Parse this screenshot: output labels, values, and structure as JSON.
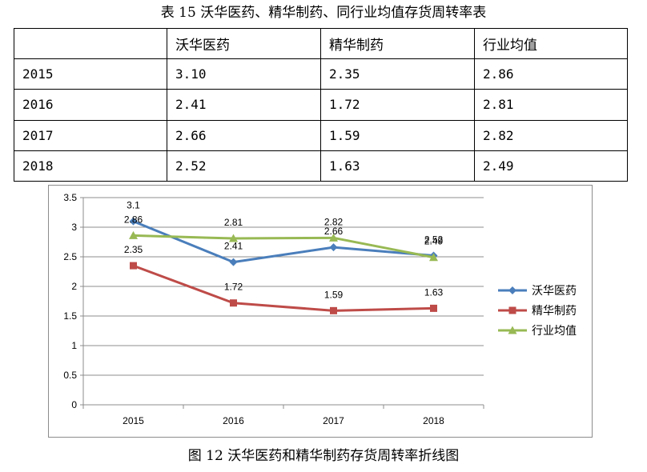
{
  "table_title": "表 15 沃华医药、精华制药、同行业均值存货周转率表",
  "table": {
    "headers": [
      "",
      "沃华医药",
      "精华制药",
      "行业均值"
    ],
    "rows": [
      [
        "2015",
        "3.10",
        "2.35",
        "2.86"
      ],
      [
        "2016",
        "2.41",
        "1.72",
        "2.81"
      ],
      [
        "2017",
        "2.66",
        "1.59",
        "2.82"
      ],
      [
        "2018",
        "2.52",
        "1.63",
        "2.49"
      ]
    ]
  },
  "figure_caption": "图 12 沃华医药和精华制药存货周转率折线图",
  "chart_data": {
    "type": "line",
    "categories": [
      "2015",
      "2016",
      "2017",
      "2018"
    ],
    "ylim": [
      0,
      3.5
    ],
    "yticks": [
      "0",
      "0.5",
      "1",
      "1.5",
      "2",
      "2.5",
      "3",
      "3.5"
    ],
    "ytick_values": [
      0,
      0.5,
      1,
      1.5,
      2,
      2.5,
      3,
      3.5
    ],
    "grid": true,
    "legend_position": "right",
    "series": [
      {
        "name": "沃华医药",
        "values": [
          3.1,
          2.41,
          2.66,
          2.52
        ],
        "labels": [
          "3.1",
          "2.41",
          "2.66",
          "2.52"
        ],
        "color": "#4a7ebb",
        "marker": "diamond"
      },
      {
        "name": "精华制药",
        "values": [
          2.35,
          1.72,
          1.59,
          1.63
        ],
        "labels": [
          "2.35",
          "1.72",
          "1.59",
          "1.63"
        ],
        "color": "#be4b48",
        "marker": "square"
      },
      {
        "name": "行业均值",
        "values": [
          2.86,
          2.81,
          2.82,
          2.49
        ],
        "labels": [
          "2.86",
          "2.81",
          "2.82",
          "2.49"
        ],
        "color": "#98b954",
        "marker": "triangle"
      }
    ]
  }
}
